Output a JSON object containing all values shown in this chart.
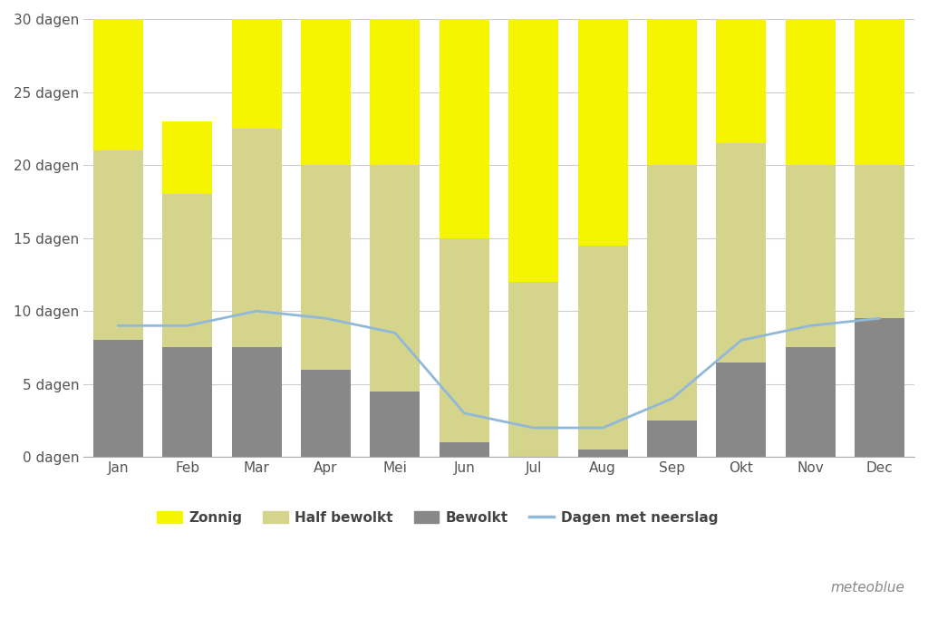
{
  "months": [
    "Jan",
    "Feb",
    "Mar",
    "Apr",
    "Mei",
    "Jun",
    "Jul",
    "Aug",
    "Sep",
    "Okt",
    "Nov",
    "Dec"
  ],
  "bewolkt": [
    8,
    7.5,
    7.5,
    6,
    4.5,
    1,
    0,
    0.5,
    2.5,
    6.5,
    7.5,
    9.5
  ],
  "half_bewolkt": [
    13,
    10.5,
    15,
    14,
    15.5,
    14,
    12,
    14,
    17.5,
    15,
    12.5,
    10.5
  ],
  "zonnig": [
    9,
    5,
    7.5,
    10,
    10,
    15,
    18,
    15.5,
    10,
    8.5,
    10,
    10
  ],
  "neerslag": [
    9,
    9,
    10,
    9.5,
    8.5,
    3,
    2,
    2,
    4,
    8,
    9,
    9.5
  ],
  "color_bewolkt": "#888888",
  "color_half_bewolkt": "#d4d48c",
  "color_zonnig": "#f5f500",
  "color_neerslag": "#90b8d8",
  "background_color": "#ffffff",
  "plot_bg_color": "#ffffff",
  "grid_color": "#cccccc",
  "yticks": [
    0,
    5,
    10,
    15,
    20,
    25,
    30
  ],
  "ytick_labels": [
    "0 dagen",
    "5 dagen",
    "10 dagen",
    "15 dagen",
    "20 dagen",
    "25 dagen",
    "30 dagen"
  ],
  "legend_labels": [
    "Zonnig",
    "Half bewolkt",
    "Bewolkt",
    "Dagen met neerslag"
  ],
  "watermark": "meteoblue",
  "tick_fontsize": 11,
  "legend_fontsize": 11
}
